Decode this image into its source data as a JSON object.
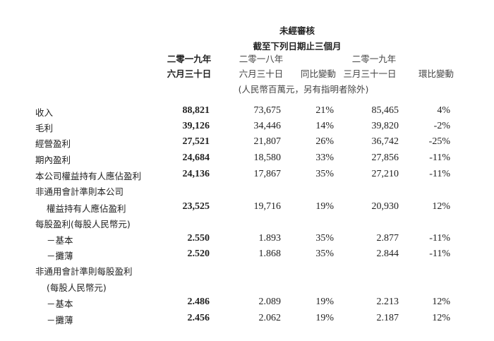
{
  "header": {
    "title": "未經審核",
    "subtitle": "截至下列日期止三個月",
    "columns": [
      {
        "year": "二零一九年",
        "date": "六月三十日"
      },
      {
        "year": "二零一八年",
        "date": "六月三十日"
      },
      {
        "year": "",
        "date": "同比變動"
      },
      {
        "year": "二零一九年",
        "date": "三月三十一日"
      },
      {
        "year": "",
        "date": "環比變動"
      }
    ],
    "unit_note": "(人民幣百萬元，另有指明者除外)"
  },
  "rows": [
    {
      "label": "收入",
      "indent": false,
      "values": [
        "88,821",
        "73,675",
        "21%",
        "85,465",
        "4%"
      ]
    },
    {
      "label": "毛利",
      "indent": false,
      "values": [
        "39,126",
        "34,446",
        "14%",
        "39,820",
        "-2%"
      ]
    },
    {
      "label": "經營盈利",
      "indent": false,
      "values": [
        "27,521",
        "21,807",
        "26%",
        "36,742",
        "-25%"
      ]
    },
    {
      "label": "期內盈利",
      "indent": false,
      "values": [
        "24,684",
        "18,580",
        "33%",
        "27,856",
        "-11%"
      ]
    },
    {
      "label": "本公司權益持有人應佔盈利",
      "indent": false,
      "values": [
        "24,136",
        "17,867",
        "35%",
        "27,210",
        "-11%"
      ]
    },
    {
      "label": "非通用會計準則本公司",
      "indent": false,
      "values": [
        "",
        "",
        "",
        "",
        ""
      ]
    },
    {
      "label": "權益持有人應佔盈利",
      "indent": true,
      "values": [
        "23,525",
        "19,716",
        "19%",
        "20,930",
        "12%"
      ]
    },
    {
      "label": "每股盈利(每股人民幣元)",
      "indent": false,
      "values": [
        "",
        "",
        "",
        "",
        ""
      ]
    },
    {
      "label": "－基本",
      "indent": true,
      "values": [
        "2.550",
        "1.893",
        "35%",
        "2.877",
        "-11%"
      ]
    },
    {
      "label": "－攤薄",
      "indent": true,
      "values": [
        "2.520",
        "1.868",
        "35%",
        "2.844",
        "-11%"
      ]
    },
    {
      "label": "非通用會計準則每股盈利",
      "indent": false,
      "values": [
        "",
        "",
        "",
        "",
        ""
      ]
    },
    {
      "label": "(每股人民幣元)",
      "indent": true,
      "values": [
        "",
        "",
        "",
        "",
        ""
      ]
    },
    {
      "label": "－基本",
      "indent": true,
      "values": [
        "2.486",
        "2.089",
        "19%",
        "2.213",
        "12%"
      ]
    },
    {
      "label": "－攤薄",
      "indent": true,
      "values": [
        "2.456",
        "2.062",
        "19%",
        "2.187",
        "12%"
      ]
    }
  ]
}
